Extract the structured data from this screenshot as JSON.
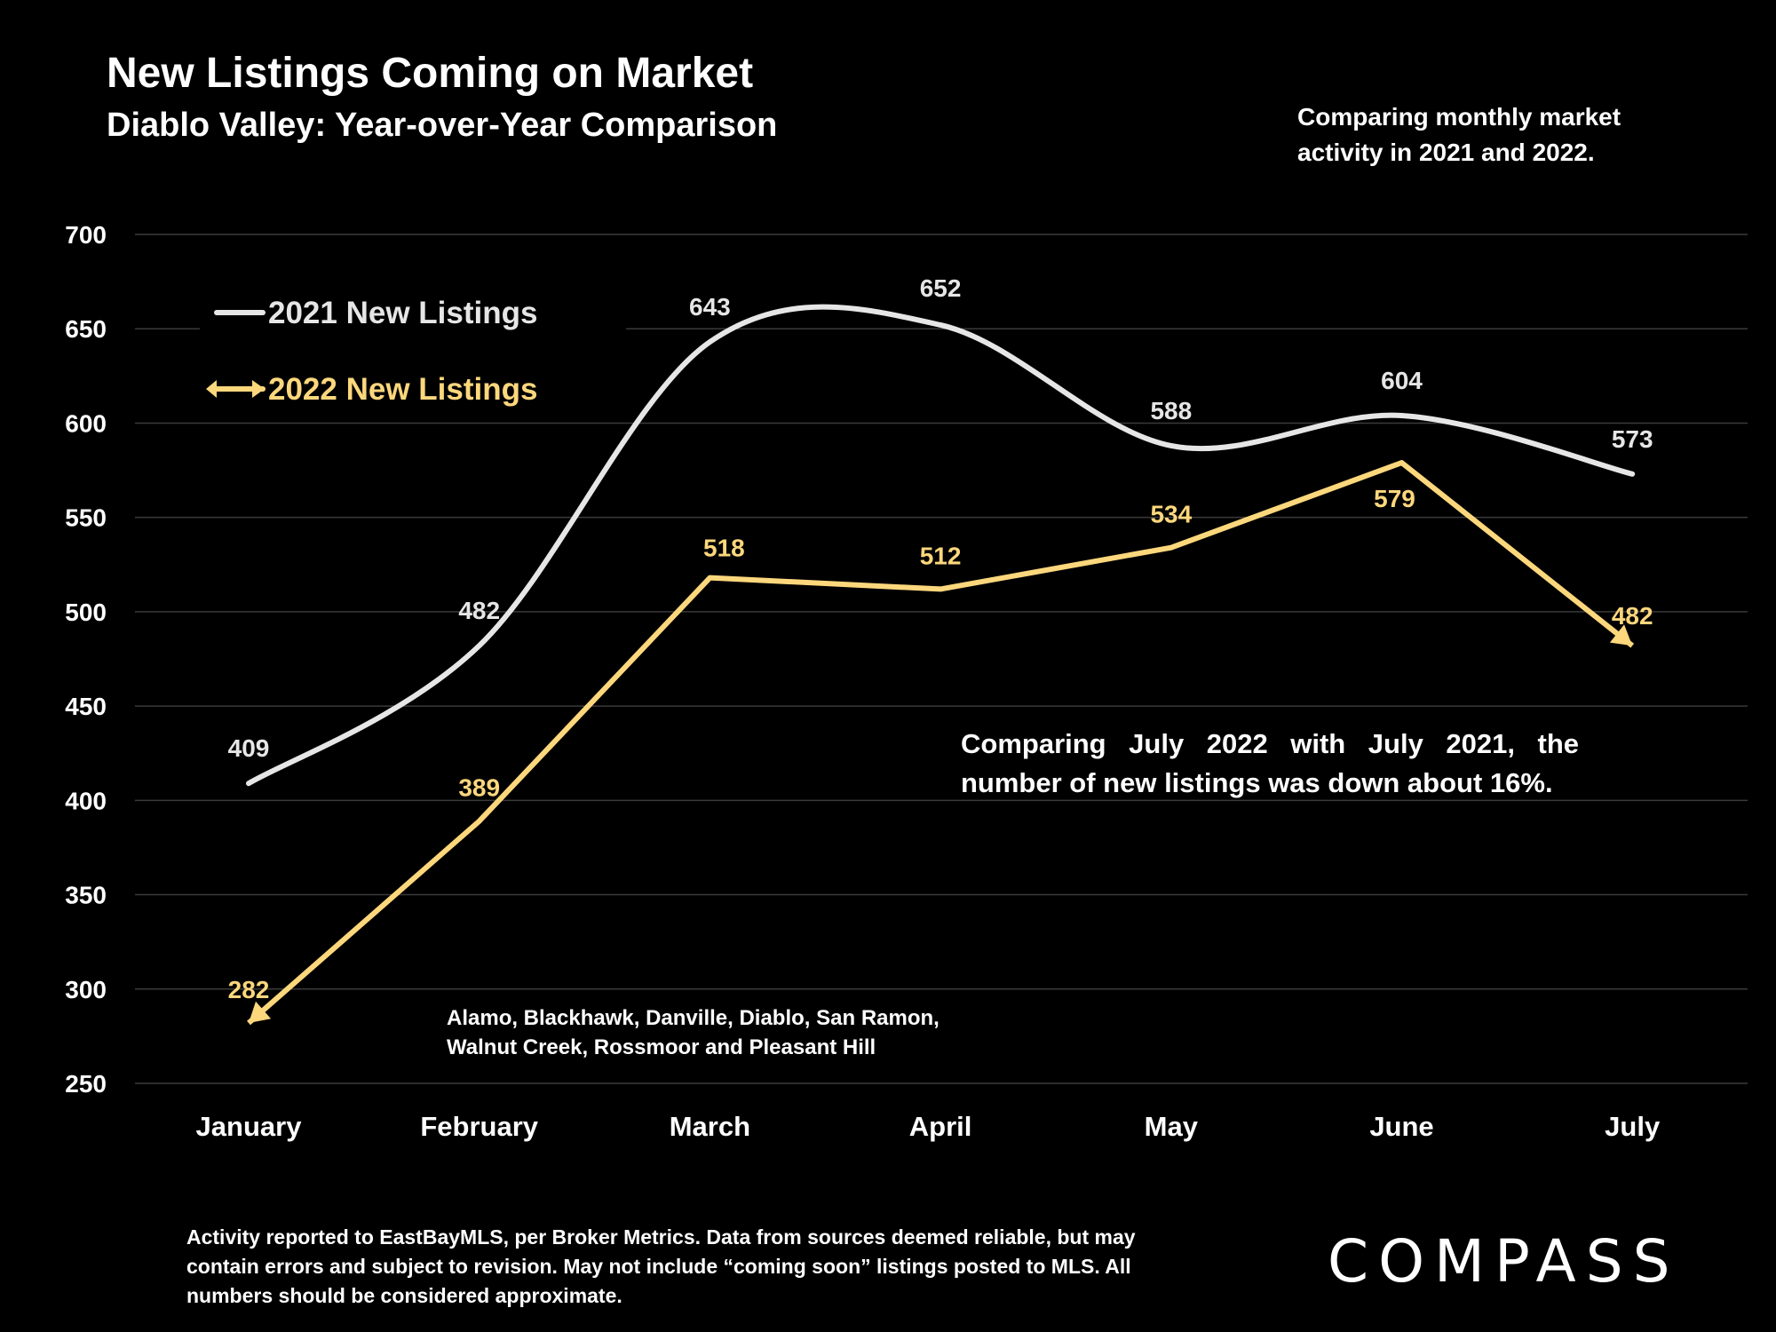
{
  "title": "New Listings Coming on Market",
  "subtitle": "Diablo Valley: Year-over-Year Comparison",
  "top_note": "Comparing monthly market activity in 2021 and 2022.",
  "callout": "Comparing July 2022 with July 2021, the number of new listings was down about 16%.",
  "regions_note": "Alamo, Blackhawk, Danville, Diablo, San Ramon, Walnut Creek, Rossmoor and Pleasant Hill",
  "footer": "Activity reported to EastBayMLS, per Broker Metrics. Data from sources deemed reliable, but may contain errors and subject to revision. May not include “coming soon” listings posted to MLS. All numbers should be considered approximate.",
  "logo_text": "COMPASS",
  "chart_data": {
    "type": "line",
    "categories": [
      "January",
      "February",
      "March",
      "April",
      "May",
      "June",
      "July"
    ],
    "ylim": [
      250,
      700
    ],
    "y_ticks": [
      250,
      300,
      350,
      400,
      450,
      500,
      550,
      600,
      650,
      700
    ],
    "grid": true,
    "legend_position": "top-left",
    "series": [
      {
        "name": "2021 New Listings",
        "color": "#e6e6e6",
        "smooth": true,
        "marker": "none",
        "values": [
          409,
          482,
          643,
          652,
          588,
          604,
          573
        ]
      },
      {
        "name": "2022 New Listings",
        "color": "#fcd77c",
        "smooth": false,
        "marker": "arrow",
        "values": [
          282,
          389,
          518,
          512,
          534,
          579,
          482
        ]
      }
    ]
  }
}
